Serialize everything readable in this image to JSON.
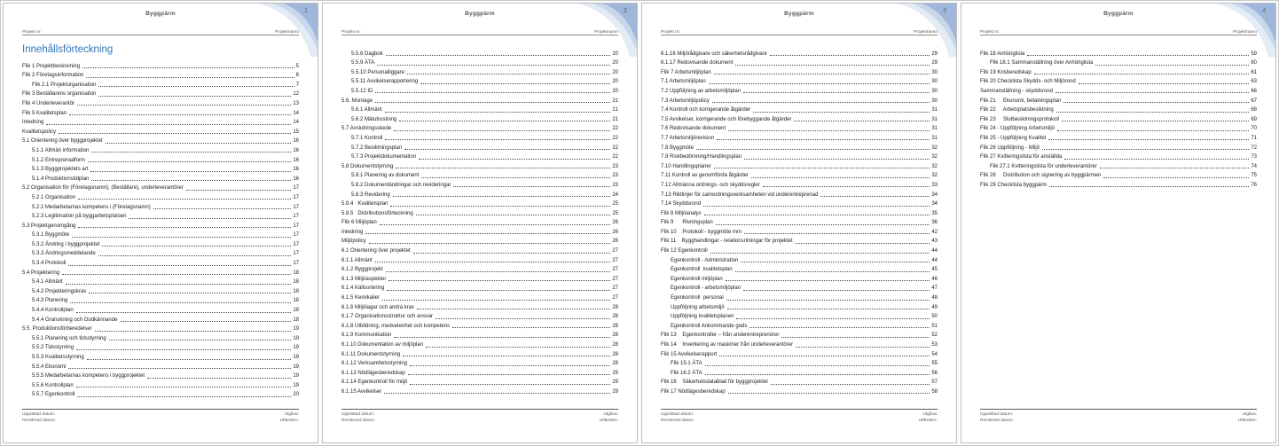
{
  "document": {
    "title": "Byggpärm",
    "header": {
      "left_label": "Projekt nr:",
      "right_label": "Projektnamn"
    },
    "toc_heading": "Innehållsförteckning",
    "footer": {
      "left_line1": "Upprättad datum:",
      "left_line2": "Reviderad datum:",
      "right_line1": "Utgåva:",
      "right_line2": "Utfärdare:"
    },
    "colors": {
      "heading_blue": "#2e75b6",
      "corner_solid": "#9fb7db",
      "corner_mid": "#c9d7eb",
      "corner_light": "#e3ebf5",
      "page_number_gray": "#6e7d93"
    }
  },
  "pages": [
    {
      "number": "1",
      "show_heading": true,
      "entries": [
        {
          "title": "Flik 1 Projektbeskrivning",
          "level": 1,
          "page": "5"
        },
        {
          "title": "Flik 2 Företagsinformation",
          "level": 1,
          "page": "6"
        },
        {
          "title": "Flik 2.1 Projektorganisation",
          "level": 2,
          "page": "7"
        },
        {
          "title": "Flik 3 Beställarens organisation",
          "level": 1,
          "page": "12"
        },
        {
          "title": "Flik 4 Underleverantör",
          "level": 1,
          "page": "13"
        },
        {
          "title": "Flik 5 Kvalitetsplan",
          "level": 1,
          "page": "14"
        },
        {
          "title": "Inledning",
          "level": 1,
          "page": "14"
        },
        {
          "title": "Kvalitetspolicy",
          "level": 1,
          "page": "15"
        },
        {
          "title": "5.1 Orientering över byggprojektet",
          "level": 1,
          "page": "16"
        },
        {
          "title": "5.1.1 Allmän information",
          "level": 2,
          "page": "16"
        },
        {
          "title": "5.1.2 Entreprenadform",
          "level": 2,
          "page": "16"
        },
        {
          "title": "5.1.3 Byggprojektets art",
          "level": 2,
          "page": "16"
        },
        {
          "title": "5.1.4 Produktionstidplan",
          "level": 2,
          "page": "16"
        },
        {
          "title": "5.2 Organisation för (Företagsnamn), (Beställare), underleverantörer",
          "level": 1,
          "page": "17"
        },
        {
          "title": "5.2.1 Organisation",
          "level": 2,
          "page": "17"
        },
        {
          "title": "5.2.2 Medarbetarnas kompetens i (Företagsnamn)",
          "level": 2,
          "page": "17"
        },
        {
          "title": "5.2.3 Legitimation på byggarbetsplatsen",
          "level": 2,
          "page": "17"
        },
        {
          "title": "5.3 Projektgenomgång",
          "level": 1,
          "page": "17"
        },
        {
          "title": "5.3.1 Byggmöte",
          "level": 2,
          "page": "17"
        },
        {
          "title": "5.3.2 Ändring i byggprojektet",
          "level": 2,
          "page": "17"
        },
        {
          "title": "5.3.3 Ändringsmeddelande",
          "level": 2,
          "page": "17"
        },
        {
          "title": "5.3.4 Protokoll",
          "level": 2,
          "page": "17"
        },
        {
          "title": "5.4 Projektering",
          "level": 1,
          "page": "18"
        },
        {
          "title": "5.4.1 Allmänt",
          "level": 2,
          "page": "18"
        },
        {
          "title": "5.4.2 Projekteringskrav",
          "level": 2,
          "page": "18"
        },
        {
          "title": "5.4.3 Planering",
          "level": 2,
          "page": "18"
        },
        {
          "title": "5.4.4 Kontrollplan",
          "level": 2,
          "page": "18"
        },
        {
          "title": "5.4.4 Granskning och Godkännande",
          "level": 2,
          "page": "18"
        },
        {
          "title": "5.5. Produktionsförberedelser",
          "level": 1,
          "page": "19"
        },
        {
          "title": "5.5.1 Planering och tidsstyrning",
          "level": 2,
          "page": "19"
        },
        {
          "title": "5.5.2 Tidsstyrning",
          "level": 2,
          "page": "19"
        },
        {
          "title": "5.5.3 Kvalitetsstyrning",
          "level": 2,
          "page": "19"
        },
        {
          "title": "5.5.4 Ekonomi",
          "level": 2,
          "page": "19"
        },
        {
          "title": "5.5.5 Medarbetarnas kompetens i byggprojektet",
          "level": 2,
          "page": "19"
        },
        {
          "title": "5.5.6 Kontrollplan",
          "level": 2,
          "page": "19"
        },
        {
          "title": "5.5.7 Egenkontroll",
          "level": 2,
          "page": "20"
        }
      ]
    },
    {
      "number": "2",
      "show_heading": false,
      "entries": [
        {
          "title": "5.5.8 Dagbok",
          "level": 2,
          "page": "20"
        },
        {
          "title": "5.5.9 ÄTA",
          "level": 2,
          "page": "20"
        },
        {
          "title": "5.5.10 Personalliggare",
          "level": 2,
          "page": "20"
        },
        {
          "title": "5.5.11 Avvikelserapportering",
          "level": 2,
          "page": "20"
        },
        {
          "title": "5.5.12 ID",
          "level": 2,
          "page": "20"
        },
        {
          "title": "5.6. Montage",
          "level": 1,
          "page": "21"
        },
        {
          "title": "5.6.1 Allmänt",
          "level": 2,
          "page": "21"
        },
        {
          "title": "5.6.2 Mätutrustning",
          "level": 2,
          "page": "21"
        },
        {
          "title": "5.7 Avslutningsskede",
          "level": 1,
          "page": "22"
        },
        {
          "title": "5.7.1 Kontroll",
          "level": 2,
          "page": "22"
        },
        {
          "title": "5.7.2 Besiktningsplan",
          "level": 2,
          "page": "22"
        },
        {
          "title": "5.7.3 Projektdokumentation",
          "level": 2,
          "page": "22"
        },
        {
          "title": "5.8 Dokumentstyrning",
          "level": 1,
          "page": "23"
        },
        {
          "title": "5.8.1 Planering av dokument",
          "level": 2,
          "page": "23"
        },
        {
          "title": "5.8.2 Dokumentändringar och revideringar",
          "level": 2,
          "page": "23"
        },
        {
          "title": "5.8.3 Revidering",
          "level": 2,
          "page": "24"
        },
        {
          "title": "5.8.4   Kvalitetsplan",
          "level": 1,
          "page": "25"
        },
        {
          "title": "5.8.5   Distributionsförteckning",
          "level": 1,
          "page": "25"
        },
        {
          "title": "Flik 6 Miljöplan",
          "level": 1,
          "page": "26"
        },
        {
          "title": "Inledning",
          "level": 1,
          "page": "26"
        },
        {
          "title": "Miljöpolicy",
          "level": 1,
          "page": "26"
        },
        {
          "title": "6.1 Orientering över projektet",
          "level": 1,
          "page": "27"
        },
        {
          "title": "6.1.1 Allmänt",
          "level": 1,
          "page": "27"
        },
        {
          "title": "6.1.2 Byggprojekt",
          "level": 1,
          "page": "27"
        },
        {
          "title": "6.1.3 Miljöaspekter",
          "level": 1,
          "page": "27"
        },
        {
          "title": "6.1.4 Källsortering",
          "level": 1,
          "page": "27"
        },
        {
          "title": "6.1.5 Kemikalier",
          "level": 1,
          "page": "27"
        },
        {
          "title": "6.1.6 Miljölagar och andra krav",
          "level": 1,
          "page": "28"
        },
        {
          "title": "6.1.7 Organisationsstruktur och ansvar",
          "level": 1,
          "page": "28"
        },
        {
          "title": "6.1.8 Utbildning, medvetenhet och kompetens",
          "level": 1,
          "page": "28"
        },
        {
          "title": "6.1.9 Kommunikation",
          "level": 1,
          "page": "28"
        },
        {
          "title": "6.1.10 Dokumentation av miljöplan",
          "level": 1,
          "page": "28"
        },
        {
          "title": "6.1.11 Dokumentstyrning",
          "level": 1,
          "page": "28"
        },
        {
          "title": "6.1.12 Verksamhetsstyrning",
          "level": 1,
          "page": "28"
        },
        {
          "title": "6.1.13 Nödlägesberedskap",
          "level": 1,
          "page": "29"
        },
        {
          "title": "6.1.14 Egenkontroll för miljö",
          "level": 1,
          "page": "29"
        },
        {
          "title": "6.1.15 Avvikelser",
          "level": 1,
          "page": "29"
        }
      ]
    },
    {
      "number": "3",
      "show_heading": false,
      "entries": [
        {
          "title": "6.1.16 Miljörådgivare och säkerhetsrådgivare",
          "level": 1,
          "page": "29"
        },
        {
          "title": "6.1.17 Redovisande dokument",
          "level": 1,
          "page": "29"
        },
        {
          "title": "Flik 7 Arbetsmiljöplan",
          "level": 1,
          "page": "30"
        },
        {
          "title": "7.1 Arbetsmiljöplan",
          "level": 1,
          "page": "30"
        },
        {
          "title": "7.2 Uppföljning av arbetsmiljöplan",
          "level": 1,
          "page": "30"
        },
        {
          "title": "7.3 Arbetsmiljöpolicy",
          "level": 1,
          "page": "30"
        },
        {
          "title": "7.4 Kontroll och korrigerande åtgärder",
          "level": 1,
          "page": "31"
        },
        {
          "title": "7.5 Avvikelser, korrigerande och förebyggande åtgärder",
          "level": 1,
          "page": "31"
        },
        {
          "title": "7.6 Redovisande dokument",
          "level": 1,
          "page": "31"
        },
        {
          "title": "7.7 Arbetsmiljörevision",
          "level": 1,
          "page": "31"
        },
        {
          "title": "7.8 Byggmöte",
          "level": 1,
          "page": "32"
        },
        {
          "title": "7.9 Riskbedömning/Handlingsplan",
          "level": 1,
          "page": "32"
        },
        {
          "title": "7.10 Handlingsplaner",
          "level": 1,
          "page": "32"
        },
        {
          "title": "7.11 Kontroll av genomförda åtgärder",
          "level": 1,
          "page": "32"
        },
        {
          "title": "7.12 Allmänna ordnings- och skyddsregler",
          "level": 1,
          "page": "33"
        },
        {
          "title": "7.13 Riktlinjer för samordningsverksamheten vid underentreprenad",
          "level": 1,
          "page": "34"
        },
        {
          "title": "7.14 Skyddsrond",
          "level": 1,
          "page": "34"
        },
        {
          "title": "Flik 8 Miljöanalys",
          "level": 1,
          "page": "35"
        },
        {
          "title": "Flik 9      Rivningsplan",
          "level": 1,
          "page": "36"
        },
        {
          "title": "Flik 10    Protokoll - byggmöte mm",
          "level": 1,
          "page": "42"
        },
        {
          "title": "Flik 11    Bygghandlingar - relationsritningar för projektet",
          "level": 1,
          "page": "43"
        },
        {
          "title": "Flik 12 Egenkontroll",
          "level": 1,
          "page": "44"
        },
        {
          "title": "Egenkontroll - Administration",
          "level": 2,
          "page": "44"
        },
        {
          "title": "Egenkontroll  kvalitetsplan",
          "level": 2,
          "page": "45"
        },
        {
          "title": "Egenkontroll miljöplan",
          "level": 2,
          "page": "46"
        },
        {
          "title": "Egenkontroll - arbetsmiljöplan",
          "level": 2,
          "page": "47"
        },
        {
          "title": "Egenkontroll  personal",
          "level": 2,
          "page": "48"
        },
        {
          "title": "Uppföljning arbetsmiljö",
          "level": 2,
          "page": "49"
        },
        {
          "title": "Uppföljning kvalitetsplanen",
          "level": 2,
          "page": "50"
        },
        {
          "title": "Egenkontroll Ankommande gods",
          "level": 2,
          "page": "51"
        },
        {
          "title": "Flik 13    Egenkontroller – från underentreprenörer",
          "level": 1,
          "page": "52"
        },
        {
          "title": "Flik 14    Inventering av maskiner från underleverantörer",
          "level": 1,
          "page": "53"
        },
        {
          "title": "Flik 15 Avvikelserapport",
          "level": 1,
          "page": "54"
        },
        {
          "title": "Flik 15.1 ÄTA",
          "level": 2,
          "page": "55"
        },
        {
          "title": "Flik 16.2 ÄTA",
          "level": 2,
          "page": "56"
        },
        {
          "title": "Flik 16    Säkerhetsdatablad för byggprojektet",
          "level": 1,
          "page": "57"
        },
        {
          "title": "Flik 17 Nödlägesberedskap",
          "level": 1,
          "page": "58"
        }
      ]
    },
    {
      "number": "4",
      "show_heading": false,
      "entries": [
        {
          "title": "Flik 18 Anhöriglista",
          "level": 1,
          "page": "59"
        },
        {
          "title": "Flik 18.1 Sammanställning över Anhöriglista",
          "level": 2,
          "page": "60"
        },
        {
          "title": "Flik 19 Krisberedskap",
          "level": 1,
          "page": "61"
        },
        {
          "title": "Flik 20 Checklista Skydds- och Miljörond",
          "level": 1,
          "page": "63"
        },
        {
          "title": "Sammanställning - skyddsrond",
          "level": 1,
          "page": "66"
        },
        {
          "title": "Flik 21     Ekonomi, betalningsplan",
          "level": 1,
          "page": "67"
        },
        {
          "title": "Flik 22     Arbetsplatsbesiktning",
          "level": 1,
          "page": "68"
        },
        {
          "title": "Flik 23     Slutbesiktningsprotokoll",
          "level": 1,
          "page": "69"
        },
        {
          "title": "Flik 24 - Uppföljning Arbetsmiljö",
          "level": 1,
          "page": "70"
        },
        {
          "title": "Flik 25 - Uppföljning Kvalitet",
          "level": 1,
          "page": "71"
        },
        {
          "title": "Flik 26 Uppföljning - Miljö",
          "level": 1,
          "page": "72"
        },
        {
          "title": "Flik 27 Kvitteringslista för anställda",
          "level": 1,
          "page": "73"
        },
        {
          "title": "Flik 27.1 Kvitteringslista för underleverantörer",
          "level": 2,
          "page": "74"
        },
        {
          "title": "Flik 28     Distribution och signering av byggpärmen",
          "level": 1,
          "page": "75"
        },
        {
          "title": "Flik 29 Checklista byggpärm",
          "level": 1,
          "page": "76"
        }
      ]
    }
  ]
}
